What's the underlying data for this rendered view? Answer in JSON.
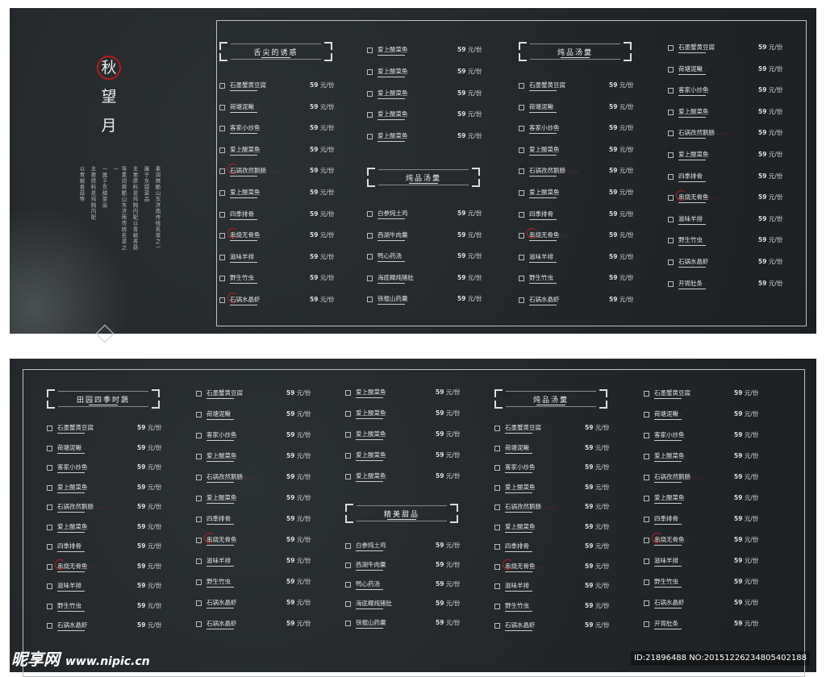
{
  "brand": {
    "title_chars": [
      "秋",
      "望",
      "月"
    ],
    "seal_char_index": 0,
    "seal_color": "#b51c1c",
    "description": [
      "素润爽脆山东济南传统名菜之一",
      "属于东甜菜品",
      "主要原料是鸡肫内配以青椒香菇",
      "等素润爽脆山东济南传统名菜之一",
      "一属于东甜菜品",
      "主要原料是鸡肫内配",
      "以青椒香菇等"
    ]
  },
  "price": {
    "value": "59",
    "unit": "元/份"
  },
  "top": {
    "columns": [
      {
        "header": "舌尖的诱惑",
        "items": [
          {
            "name": "石墨蟹黄豆腐",
            "chili": 0
          },
          {
            "name": "荷塘泥鳅",
            "chili": 1
          },
          {
            "name": "客家小炒鱼",
            "chili": 0
          },
          {
            "name": "爱上酸菜鱼",
            "chili": 0
          },
          {
            "name": "石锅孜然鹅肠",
            "chili": 3,
            "circled": true
          },
          {
            "name": "爱上酸菜鱼",
            "chili": 0
          },
          {
            "name": "四季排骨",
            "chili": 0
          },
          {
            "name": "串烧无骨鱼",
            "chili": 2,
            "circled": true
          },
          {
            "name": "滋味羊排",
            "chili": 1
          },
          {
            "name": "野生竹虫",
            "chili": 0
          },
          {
            "name": "石锅水晶虾",
            "chili": 0,
            "circled": true
          }
        ]
      },
      {
        "items": [
          {
            "name": "爱上酸菜鱼"
          },
          {
            "name": "爱上酸菜鱼"
          },
          {
            "name": "爱上酸菜鱼"
          },
          {
            "name": "爱上酸菜鱼"
          },
          {
            "name": "爱上酸菜鱼"
          }
        ],
        "header2": "炖品汤羹",
        "items2": [
          {
            "name": "白参炖土鸡"
          },
          {
            "name": "西湖牛肉羹"
          },
          {
            "name": "鸭心药汤"
          },
          {
            "name": "海底椰炖猪肚"
          },
          {
            "name": "铁棍山药羹"
          }
        ]
      },
      {
        "header": "炖品汤羹",
        "items": [
          {
            "name": "石墨蟹黄豆腐"
          },
          {
            "name": "荷塘泥鳅",
            "chili": 1
          },
          {
            "name": "客家小炒鱼"
          },
          {
            "name": "爱上酸菜鱼"
          },
          {
            "name": "石锅孜然鹅肠",
            "chili": 3
          },
          {
            "name": "爱上酸菜鱼"
          },
          {
            "name": "四季排骨"
          },
          {
            "name": "串烧无骨鱼",
            "chili": 2,
            "circled": true
          },
          {
            "name": "滋味羊排",
            "chili": 1
          },
          {
            "name": "野生竹虫"
          },
          {
            "name": "石锅水晶虾"
          }
        ]
      },
      {
        "items": [
          {
            "name": "石墨蟹黄豆腐"
          },
          {
            "name": "荷塘泥鳅",
            "chili": 1
          },
          {
            "name": "客家小炒鱼"
          },
          {
            "name": "爱上酸菜鱼"
          },
          {
            "name": "石锅孜然鹅肠",
            "chili": 3
          },
          {
            "name": "爱上酸菜鱼"
          },
          {
            "name": "四季排骨"
          },
          {
            "name": "串烧无骨鱼",
            "chili": 2,
            "circled": true
          },
          {
            "name": "滋味羊排",
            "chili": 1
          },
          {
            "name": "野生竹虫"
          },
          {
            "name": "石锅水晶虾"
          },
          {
            "name": "开胃肚条",
            "chili": 1
          }
        ]
      }
    ]
  },
  "bottom": {
    "columns": [
      {
        "header": "田园四季时蔬",
        "items": [
          {
            "name": "石墨蟹黄豆腐"
          },
          {
            "name": "荷塘泥鳅",
            "chili": 1
          },
          {
            "name": "客家小炒鱼"
          },
          {
            "name": "爱上酸菜鱼"
          },
          {
            "name": "石锅孜然鹅肠",
            "chili": 3
          },
          {
            "name": "爱上酸菜鱼"
          },
          {
            "name": "四季排骨"
          },
          {
            "name": "串烧无骨鱼",
            "chili": 2,
            "circled": true
          },
          {
            "name": "滋味羊排",
            "chili": 1
          },
          {
            "name": "野生竹虫"
          },
          {
            "name": "石锅水晶虾"
          }
        ]
      },
      {
        "items": [
          {
            "name": "石墨蟹黄豆腐"
          },
          {
            "name": "荷塘泥鳅",
            "chili": 1
          },
          {
            "name": "客家小炒鱼"
          },
          {
            "name": "爱上酸菜鱼"
          },
          {
            "name": "石锅孜然鹅肠",
            "chili": 3
          },
          {
            "name": "爱上酸菜鱼"
          },
          {
            "name": "四季排骨"
          },
          {
            "name": "串烧无骨鱼",
            "chili": 2,
            "circled": true
          },
          {
            "name": "滋味羊排",
            "chili": 1
          },
          {
            "name": "野生竹虫"
          },
          {
            "name": "石锅水晶虾"
          },
          {
            "name": "石锅水晶虾"
          }
        ]
      },
      {
        "items": [
          {
            "name": "爱上酸菜鱼"
          },
          {
            "name": "爱上酸菜鱼"
          },
          {
            "name": "爱上酸菜鱼"
          },
          {
            "name": "爱上酸菜鱼"
          },
          {
            "name": "爱上酸菜鱼"
          }
        ],
        "header2": "精美甜品",
        "items2": [
          {
            "name": "白参炖土鸡"
          },
          {
            "name": "西湖牛肉羹"
          },
          {
            "name": "鸭心药汤"
          },
          {
            "name": "海底椰炖猪肚"
          },
          {
            "name": "铁棍山药羹"
          }
        ]
      },
      {
        "header": "炖品汤羹",
        "items": [
          {
            "name": "石墨蟹黄豆腐"
          },
          {
            "name": "荷塘泥鳅",
            "chili": 1
          },
          {
            "name": "客家小炒鱼"
          },
          {
            "name": "爱上酸菜鱼"
          },
          {
            "name": "石锅孜然鹅肠",
            "chili": 3
          },
          {
            "name": "爱上酸菜鱼"
          },
          {
            "name": "四季排骨"
          },
          {
            "name": "串烧无骨鱼",
            "chili": 2,
            "circled": true
          },
          {
            "name": "滋味羊排",
            "chili": 1
          },
          {
            "name": "野生竹虫"
          },
          {
            "name": "石锅水晶虾"
          }
        ]
      },
      {
        "items": [
          {
            "name": "石墨蟹黄豆腐"
          },
          {
            "name": "荷塘泥鳅",
            "chili": 1
          },
          {
            "name": "客家小炒鱼"
          },
          {
            "name": "爱上酸菜鱼"
          },
          {
            "name": "石锅孜然鹅肠",
            "chili": 3
          },
          {
            "name": "爱上酸菜鱼"
          },
          {
            "name": "四季排骨"
          },
          {
            "name": "串烧无骨鱼",
            "chili": 2,
            "circled": true
          },
          {
            "name": "滋味羊排",
            "chili": 1
          },
          {
            "name": "野生竹虫"
          },
          {
            "name": "石锅水晶虾"
          },
          {
            "name": "开胃肚条",
            "chili": 1
          }
        ]
      }
    ]
  },
  "watermark": {
    "logo": "昵享网",
    "url": "www.nipic.cn",
    "id": "ID:21896488 NO:20151226234805402188"
  }
}
